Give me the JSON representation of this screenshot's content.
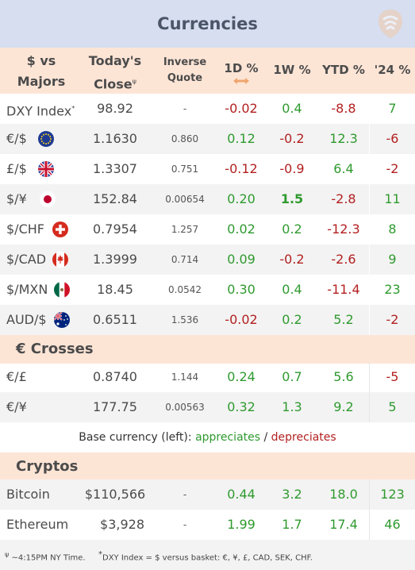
{
  "title": "Currencies",
  "header": {
    "col1_line1": "$ vs",
    "col1_line2": "Majors",
    "col2_line1": "Today's",
    "col2_line2": "Close",
    "col2_marker": "ψ",
    "col3_line1": "Inverse",
    "col3_line2": "Quote",
    "col4": "1D %",
    "col5": "1W %",
    "col6": "YTD %",
    "col7": "'24 %"
  },
  "majors": [
    {
      "name": "DXY Index",
      "marker": "*",
      "flag": null,
      "close": "98.92",
      "inverse": "-",
      "d1": "-0.02",
      "w1": "0.4",
      "ytd": "-8.8",
      "y24": "7",
      "d1_sign": "neg",
      "w1_sign": "pos",
      "ytd_sign": "neg",
      "y24_sign": "pos"
    },
    {
      "name": "€/$",
      "flag": "eu-flag-icon",
      "close": "1.1630",
      "inverse": "0.860",
      "d1": "0.12",
      "w1": "-0.2",
      "ytd": "12.3",
      "y24": "-6",
      "d1_sign": "pos",
      "w1_sign": "neg",
      "ytd_sign": "pos",
      "y24_sign": "neg"
    },
    {
      "name": "£/$",
      "flag": "uk-flag-icon",
      "close": "1.3307",
      "inverse": "0.751",
      "d1": "-0.12",
      "w1": "-0.9",
      "ytd": "6.4",
      "y24": "-2",
      "d1_sign": "neg",
      "w1_sign": "neg",
      "ytd_sign": "pos",
      "y24_sign": "neg"
    },
    {
      "name": "$/¥",
      "flag": "japan-flag-icon",
      "close": "152.84",
      "inverse": "0.00654",
      "d1": "0.20",
      "w1": "1.5",
      "ytd": "-2.8",
      "y24": "11",
      "d1_sign": "pos",
      "w1_sign": "pos",
      "ytd_sign": "neg",
      "y24_sign": "pos",
      "w1_bold": true
    },
    {
      "name": "$/CHF",
      "flag": "swiss-flag-icon",
      "close": "0.7954",
      "inverse": "1.257",
      "d1": "0.02",
      "w1": "0.2",
      "ytd": "-12.3",
      "y24": "8",
      "d1_sign": "pos",
      "w1_sign": "pos",
      "ytd_sign": "neg",
      "y24_sign": "pos"
    },
    {
      "name": "$/CAD",
      "flag": "canada-flag-icon",
      "close": "1.3999",
      "inverse": "0.714",
      "d1": "0.09",
      "w1": "-0.2",
      "ytd": "-2.6",
      "y24": "9",
      "d1_sign": "pos",
      "w1_sign": "neg",
      "ytd_sign": "neg",
      "y24_sign": "pos"
    },
    {
      "name": "$/MXN",
      "flag": "mexico-flag-icon",
      "close": "18.45",
      "inverse": "0.0542",
      "d1": "0.30",
      "w1": "0.4",
      "ytd": "-11.4",
      "y24": "23",
      "d1_sign": "pos",
      "w1_sign": "pos",
      "ytd_sign": "neg",
      "y24_sign": "pos"
    },
    {
      "name": "AUD/$",
      "flag": "australia-flag-icon",
      "close": "0.6511",
      "inverse": "1.536",
      "d1": "-0.02",
      "w1": "0.2",
      "ytd": "5.2",
      "y24": "-2",
      "d1_sign": "neg",
      "w1_sign": "pos",
      "ytd_sign": "pos",
      "y24_sign": "neg"
    }
  ],
  "crosses_title": "€ Crosses",
  "crosses": [
    {
      "name": "€/£",
      "close": "0.8740",
      "inverse": "1.144",
      "d1": "0.24",
      "w1": "0.7",
      "ytd": "5.6",
      "y24": "-5",
      "d1_sign": "pos",
      "w1_sign": "pos",
      "ytd_sign": "pos",
      "y24_sign": "neg"
    },
    {
      "name": "€/¥",
      "close": "177.75",
      "inverse": "0.00563",
      "d1": "0.32",
      "w1": "1.3",
      "ytd": "9.2",
      "y24": "5",
      "d1_sign": "pos",
      "w1_sign": "pos",
      "ytd_sign": "pos",
      "y24_sign": "pos"
    }
  ],
  "legend": {
    "prefix": "Base currency (left):",
    "appreciates": "appreciates",
    "separator": "/",
    "depreciates": "depreciates"
  },
  "cryptos_title": "Cryptos",
  "cryptos": [
    {
      "name": "Bitcoin",
      "close": "$110,566",
      "inverse": "-",
      "d1": "0.44",
      "w1": "3.2",
      "ytd": "18.0",
      "y24": "123",
      "d1_sign": "pos",
      "w1_sign": "pos",
      "ytd_sign": "pos",
      "y24_sign": "pos"
    },
    {
      "name": "Ethereum",
      "close": "$3,928",
      "inverse": "-",
      "d1": "1.99",
      "w1": "1.7",
      "ytd": "17.4",
      "y24": "46",
      "d1_sign": "pos",
      "w1_sign": "pos",
      "ytd_sign": "pos",
      "y24_sign": "pos"
    }
  ],
  "footnotes": {
    "fn1_marker": "ψ",
    "fn1": "~4:15PM NY Time.",
    "fn2_marker": "*",
    "fn2": "DXY Index = $ versus basket: €, ¥, £, CAD, SEK, CHF."
  },
  "colors": {
    "positive": "#2f9a2f",
    "negative": "#b32020",
    "header_bg": "#fde5d6",
    "title_bg": "#d6def0"
  }
}
